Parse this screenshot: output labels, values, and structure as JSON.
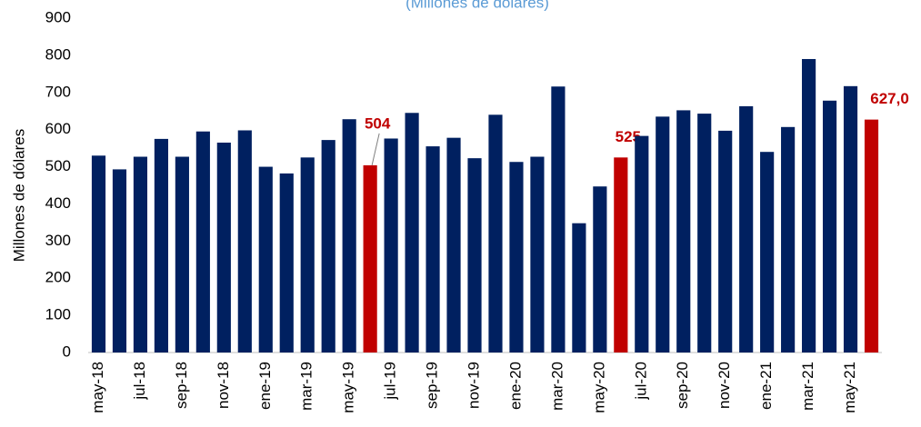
{
  "chart_data": {
    "type": "bar",
    "title": "(Millones de dólares)",
    "y_label": "Millones de dólares",
    "categories": [
      "may-18",
      null,
      "jul-18",
      null,
      "sep-18",
      null,
      "nov-18",
      null,
      "ene-19",
      null,
      "mar-19",
      null,
      "may-19",
      null,
      "jul-19",
      null,
      "sep-19",
      null,
      "nov-19",
      null,
      "ene-20",
      null,
      "mar-20",
      null,
      "may-20",
      null,
      "jul-20",
      null,
      "sep-20",
      null,
      "nov-20",
      null,
      "ene-21",
      null,
      "mar-21",
      null,
      "may-21",
      null
    ],
    "values": [
      530,
      493,
      527,
      575,
      527,
      595,
      565,
      598,
      500,
      482,
      525,
      572,
      628,
      504,
      576,
      645,
      555,
      578,
      523,
      640,
      513,
      527,
      716,
      348,
      447,
      525,
      583,
      635,
      652,
      643,
      597,
      663,
      540,
      607,
      790,
      678,
      717,
      627
    ],
    "value_labels": [
      null,
      null,
      null,
      null,
      null,
      null,
      null,
      null,
      null,
      null,
      null,
      null,
      null,
      "504",
      null,
      null,
      null,
      null,
      null,
      null,
      null,
      null,
      null,
      null,
      null,
      "525",
      null,
      null,
      null,
      null,
      null,
      null,
      null,
      null,
      null,
      null,
      null,
      "627,0"
    ],
    "colors": [
      "#002060",
      "#002060",
      "#002060",
      "#002060",
      "#002060",
      "#002060",
      "#002060",
      "#002060",
      "#002060",
      "#002060",
      "#002060",
      "#002060",
      "#002060",
      "#c00000",
      "#002060",
      "#002060",
      "#002060",
      "#002060",
      "#002060",
      "#002060",
      "#002060",
      "#002060",
      "#002060",
      "#002060",
      "#002060",
      "#c00000",
      "#002060",
      "#002060",
      "#002060",
      "#002060",
      "#002060",
      "#002060",
      "#002060",
      "#002060",
      "#002060",
      "#002060",
      "#002060",
      "#c00000"
    ],
    "ylim": [
      0,
      900
    ],
    "yticks": [
      0,
      100,
      200,
      300,
      400,
      500,
      600,
      700,
      800,
      900
    ],
    "grid": false
  }
}
